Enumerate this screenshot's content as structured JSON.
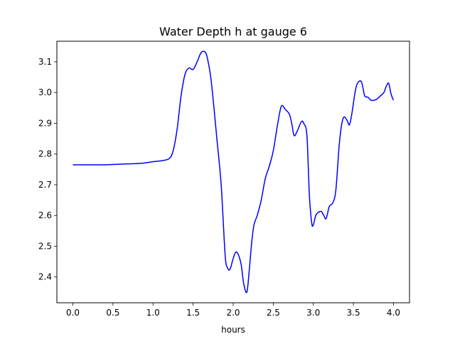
{
  "chart_data": {
    "type": "line",
    "title": "Water Depth h at gauge 6",
    "xlabel": "hours",
    "ylabel": "",
    "xlim": [
      -0.2,
      4.2
    ],
    "ylim": [
      2.316,
      3.167
    ],
    "xticks": [
      0.0,
      0.5,
      1.0,
      1.5,
      2.0,
      2.5,
      3.0,
      3.5,
      4.0
    ],
    "xtick_labels": [
      "0.0",
      "0.5",
      "1.0",
      "1.5",
      "2.0",
      "2.5",
      "3.0",
      "3.5",
      "4.0"
    ],
    "yticks": [
      2.4,
      2.5,
      2.6,
      2.7,
      2.8,
      2.9,
      3.0,
      3.1
    ],
    "ytick_labels": [
      "2.4",
      "2.5",
      "2.6",
      "2.7",
      "2.8",
      "2.9",
      "3.0",
      "3.1"
    ],
    "grid": false,
    "series": [
      {
        "color": "#0000ff",
        "x": [
          0.0,
          0.2,
          0.4,
          0.6,
          0.8,
          0.9,
          1.0,
          1.1,
          1.2,
          1.25,
          1.3,
          1.35,
          1.4,
          1.45,
          1.5,
          1.55,
          1.6,
          1.65,
          1.68,
          1.72,
          1.76,
          1.8,
          1.85,
          1.9,
          1.93,
          1.96,
          2.0,
          2.03,
          2.06,
          2.1,
          2.13,
          2.17,
          2.2,
          2.23,
          2.26,
          2.3,
          2.35,
          2.4,
          2.45,
          2.5,
          2.55,
          2.6,
          2.65,
          2.7,
          2.73,
          2.76,
          2.8,
          2.85,
          2.88,
          2.92,
          2.95,
          2.98,
          3.0,
          3.03,
          3.06,
          3.1,
          3.13,
          3.16,
          3.2,
          3.24,
          3.28,
          3.32,
          3.35,
          3.38,
          3.42,
          3.45,
          3.48,
          3.52,
          3.55,
          3.6,
          3.64,
          3.68,
          3.72,
          3.76,
          3.8,
          3.84,
          3.88,
          3.91,
          3.94,
          3.97,
          4.0
        ],
        "y": [
          2.765,
          2.765,
          2.765,
          2.767,
          2.769,
          2.771,
          2.775,
          2.778,
          2.785,
          2.81,
          2.88,
          2.99,
          3.06,
          3.08,
          3.075,
          3.1,
          3.13,
          3.132,
          3.11,
          3.05,
          2.95,
          2.84,
          2.7,
          2.47,
          2.43,
          2.425,
          2.46,
          2.48,
          2.475,
          2.44,
          2.38,
          2.35,
          2.42,
          2.51,
          2.57,
          2.6,
          2.65,
          2.72,
          2.76,
          2.81,
          2.89,
          2.955,
          2.945,
          2.93,
          2.9,
          2.86,
          2.875,
          2.905,
          2.9,
          2.86,
          2.67,
          2.575,
          2.57,
          2.6,
          2.61,
          2.613,
          2.6,
          2.59,
          2.63,
          2.64,
          2.68,
          2.82,
          2.89,
          2.92,
          2.91,
          2.895,
          2.93,
          3.0,
          3.03,
          3.035,
          2.99,
          2.985,
          2.975,
          2.975,
          2.98,
          2.99,
          3.0,
          3.02,
          3.03,
          2.995,
          2.975
        ]
      }
    ]
  }
}
